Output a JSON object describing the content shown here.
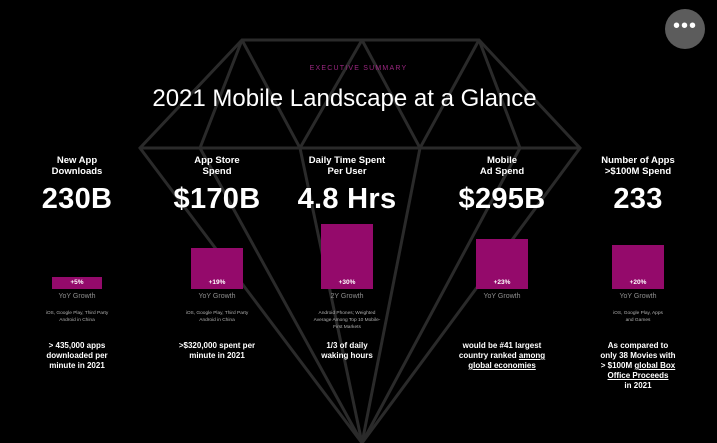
{
  "header": {
    "eyebrow": "EXECUTIVE SUMMARY",
    "title": "2021 Mobile Landscape at a Glance"
  },
  "more_menu": {
    "icon": "more-horizontal-icon",
    "glyph": "•••"
  },
  "colors": {
    "accent": "#940a6b",
    "eyebrow": "#9b2780",
    "background": "#000000",
    "diamond_outline": "#2a2a2a"
  },
  "metrics": [
    {
      "label": "New App\nDownloads",
      "value": "230B",
      "growth_badge": "+5%",
      "growth_fraction": 0.05,
      "growth_label": "YoY Growth",
      "note": "iOS, Google Play, Third Party\nAndroid in China",
      "description": "> 435,000 apps\ndownloaded per\nminute in 2021"
    },
    {
      "label": "App Store\nSpend",
      "value": "$170B",
      "growth_badge": "+19%",
      "growth_fraction": 0.19,
      "growth_label": "YoY Growth",
      "note": "iOS, Google Play, Third Party\nAndroid in China",
      "description": ">$320,000 spent per\nminute in 2021"
    },
    {
      "label": "Daily Time Spent\nPer User",
      "value": "4.8 Hrs",
      "growth_badge": "+30%",
      "growth_fraction": 0.3,
      "growth_label": "2Y Growth",
      "note": "Android Phones; Weighted\nAverage Among Top 10 Mobile-\nFirst Markets",
      "description": "1/3 of daily\nwaking hours"
    },
    {
      "label": "Mobile\nAd Spend",
      "value": "$295B",
      "growth_badge": "+23%",
      "growth_fraction": 0.23,
      "growth_label": "YoY Growth",
      "note": "",
      "description_parts": [
        "would be #41 largest\ncountry ranked ",
        "among\nglobal economies"
      ]
    },
    {
      "label": "Number of Apps\n>$100M Spend",
      "value": "233",
      "growth_badge": "+20%",
      "growth_fraction": 0.2,
      "growth_label": "YoY Growth",
      "note": "iOS, Google Play, Apps\nand Games",
      "description_parts": [
        "As compared to\nonly 38 Movies with\n> $100M ",
        "global Box\nOffice Proceeds",
        "\nin 2021"
      ]
    }
  ]
}
